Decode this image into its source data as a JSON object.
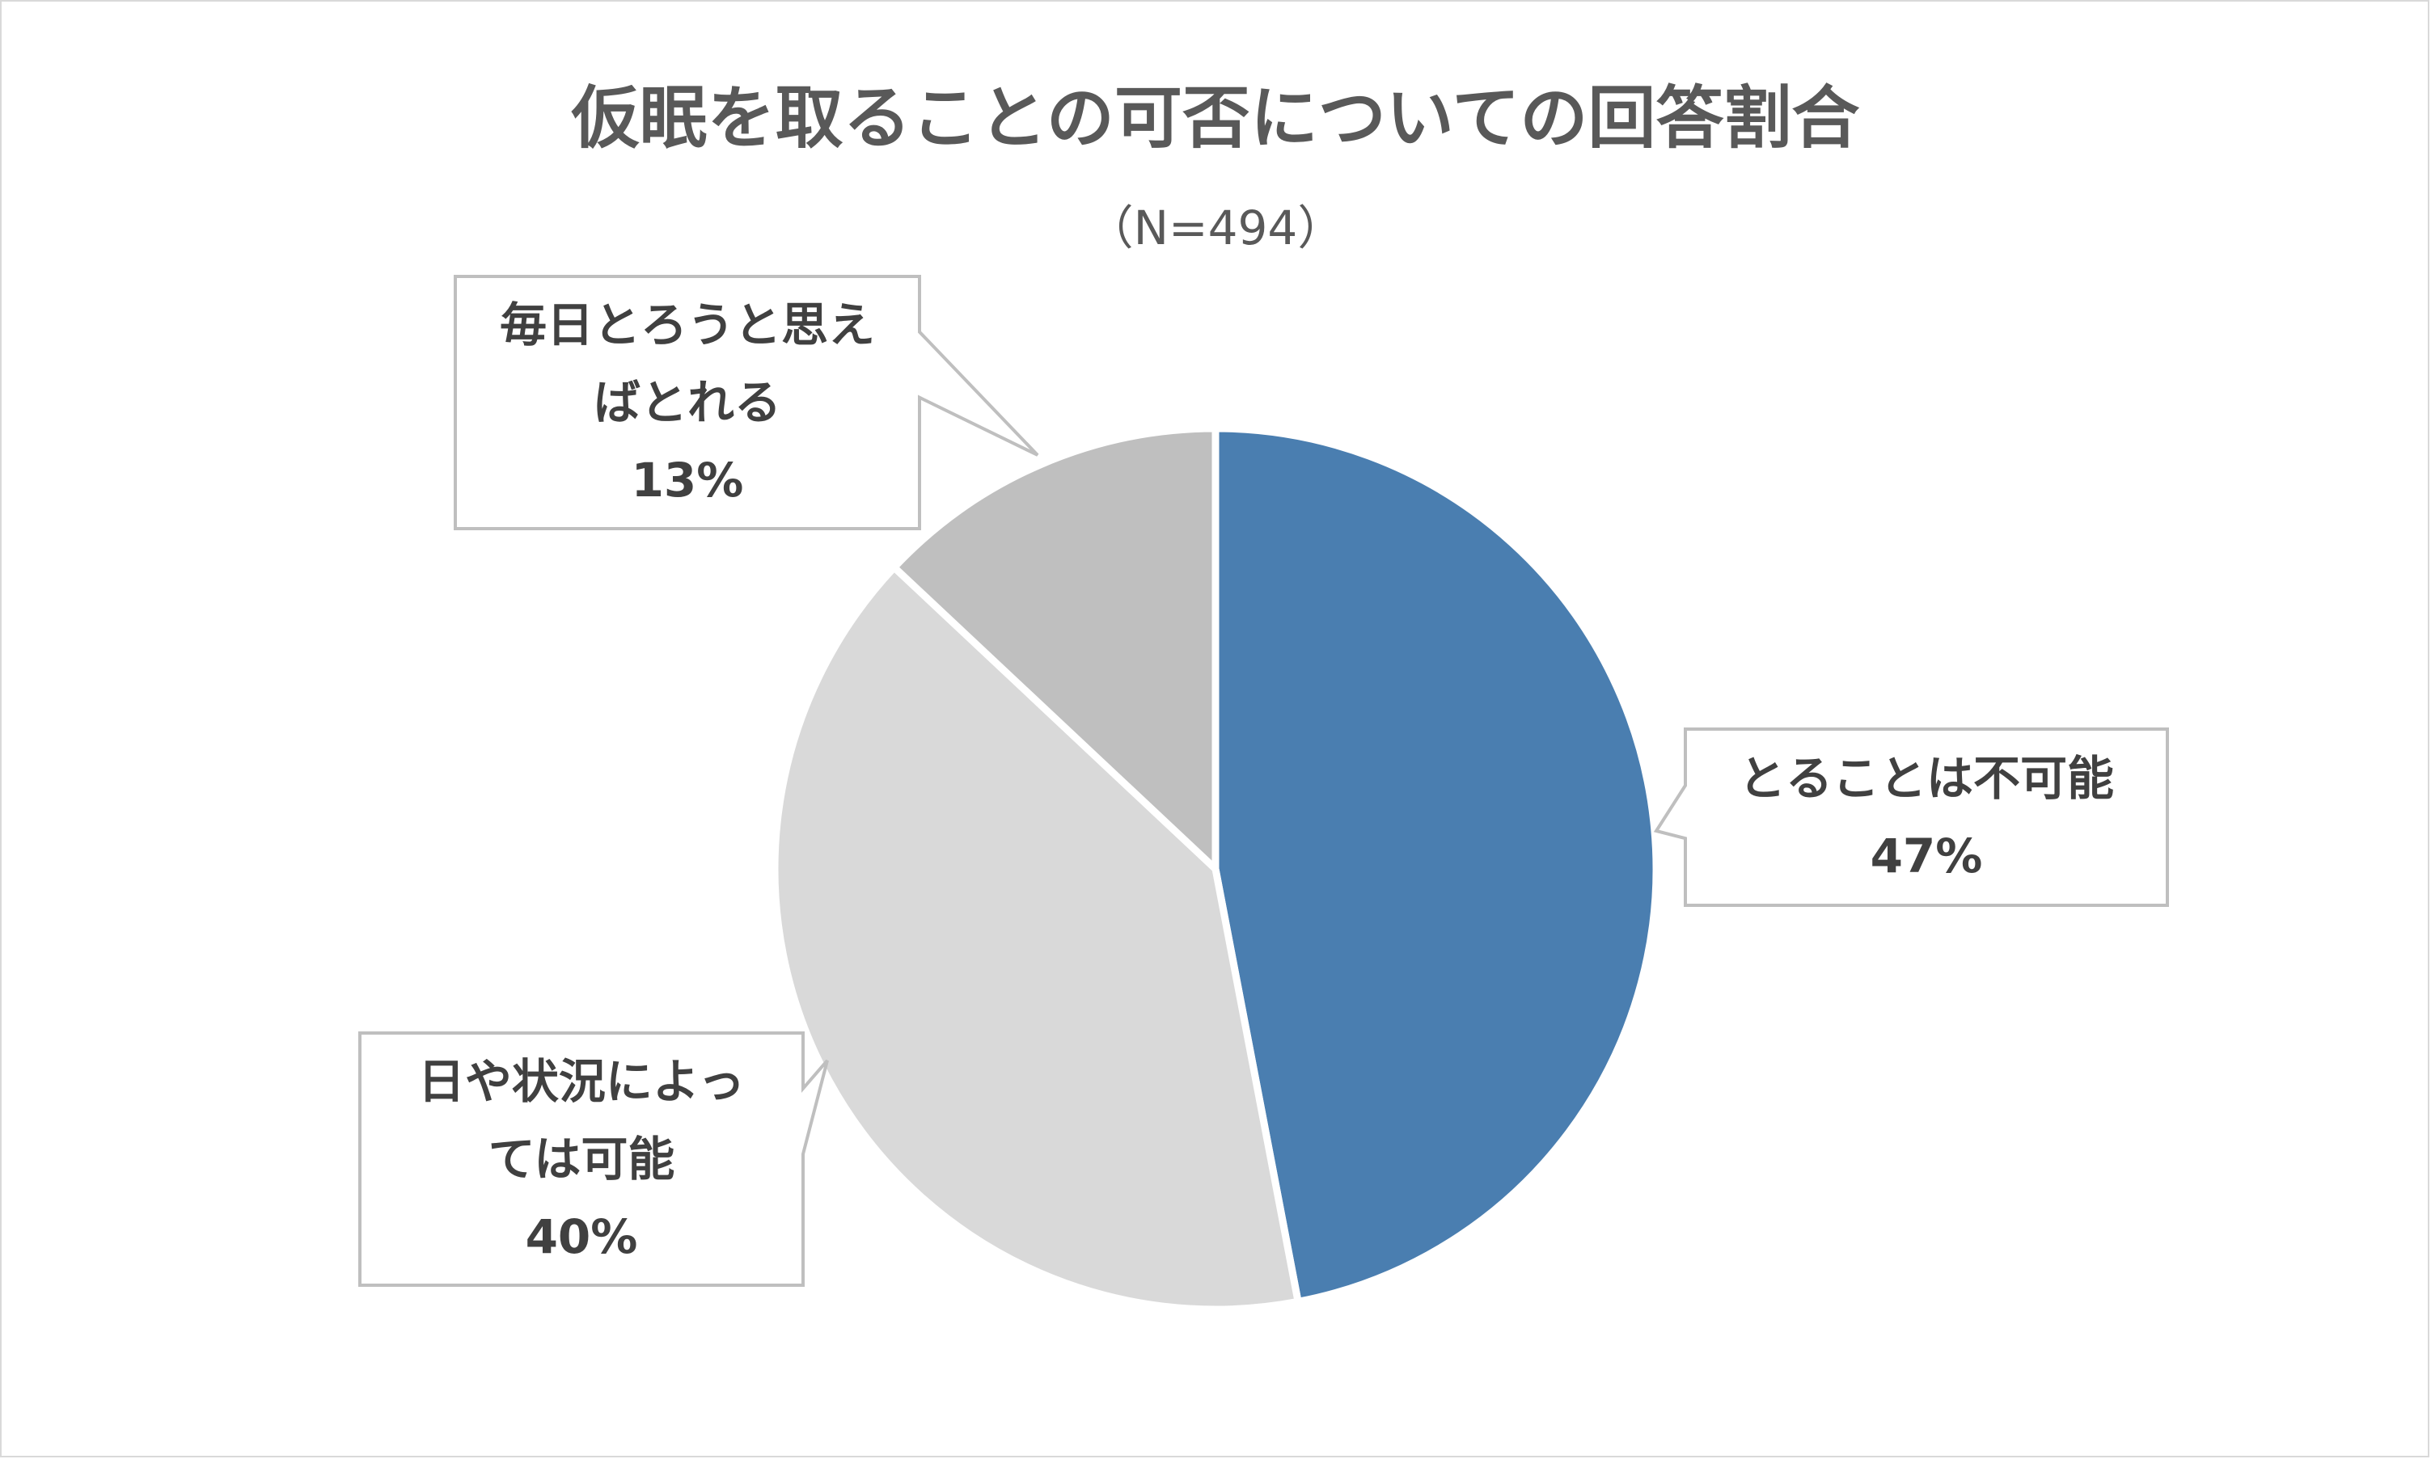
{
  "chart_data": {
    "type": "pie",
    "title": "仮眠を取ることの可否についての回答割合",
    "subtitle": "（N=494）",
    "slices": [
      {
        "label_lines": [
          "とることは不可能"
        ],
        "value": 47,
        "value_label": "47%",
        "color": "#4a7eb0"
      },
      {
        "label_lines": [
          "日や状況によっ",
          "ては可能"
        ],
        "value": 40,
        "value_label": "40%",
        "color": "#d9d9d9"
      },
      {
        "label_lines": [
          "毎日とろうと思え",
          "ばとれる"
        ],
        "value": 13,
        "value_label": "13%",
        "color": "#bfbfbf"
      }
    ],
    "start": "12 o'clock",
    "direction": "clockwise",
    "labels": "callouts"
  }
}
